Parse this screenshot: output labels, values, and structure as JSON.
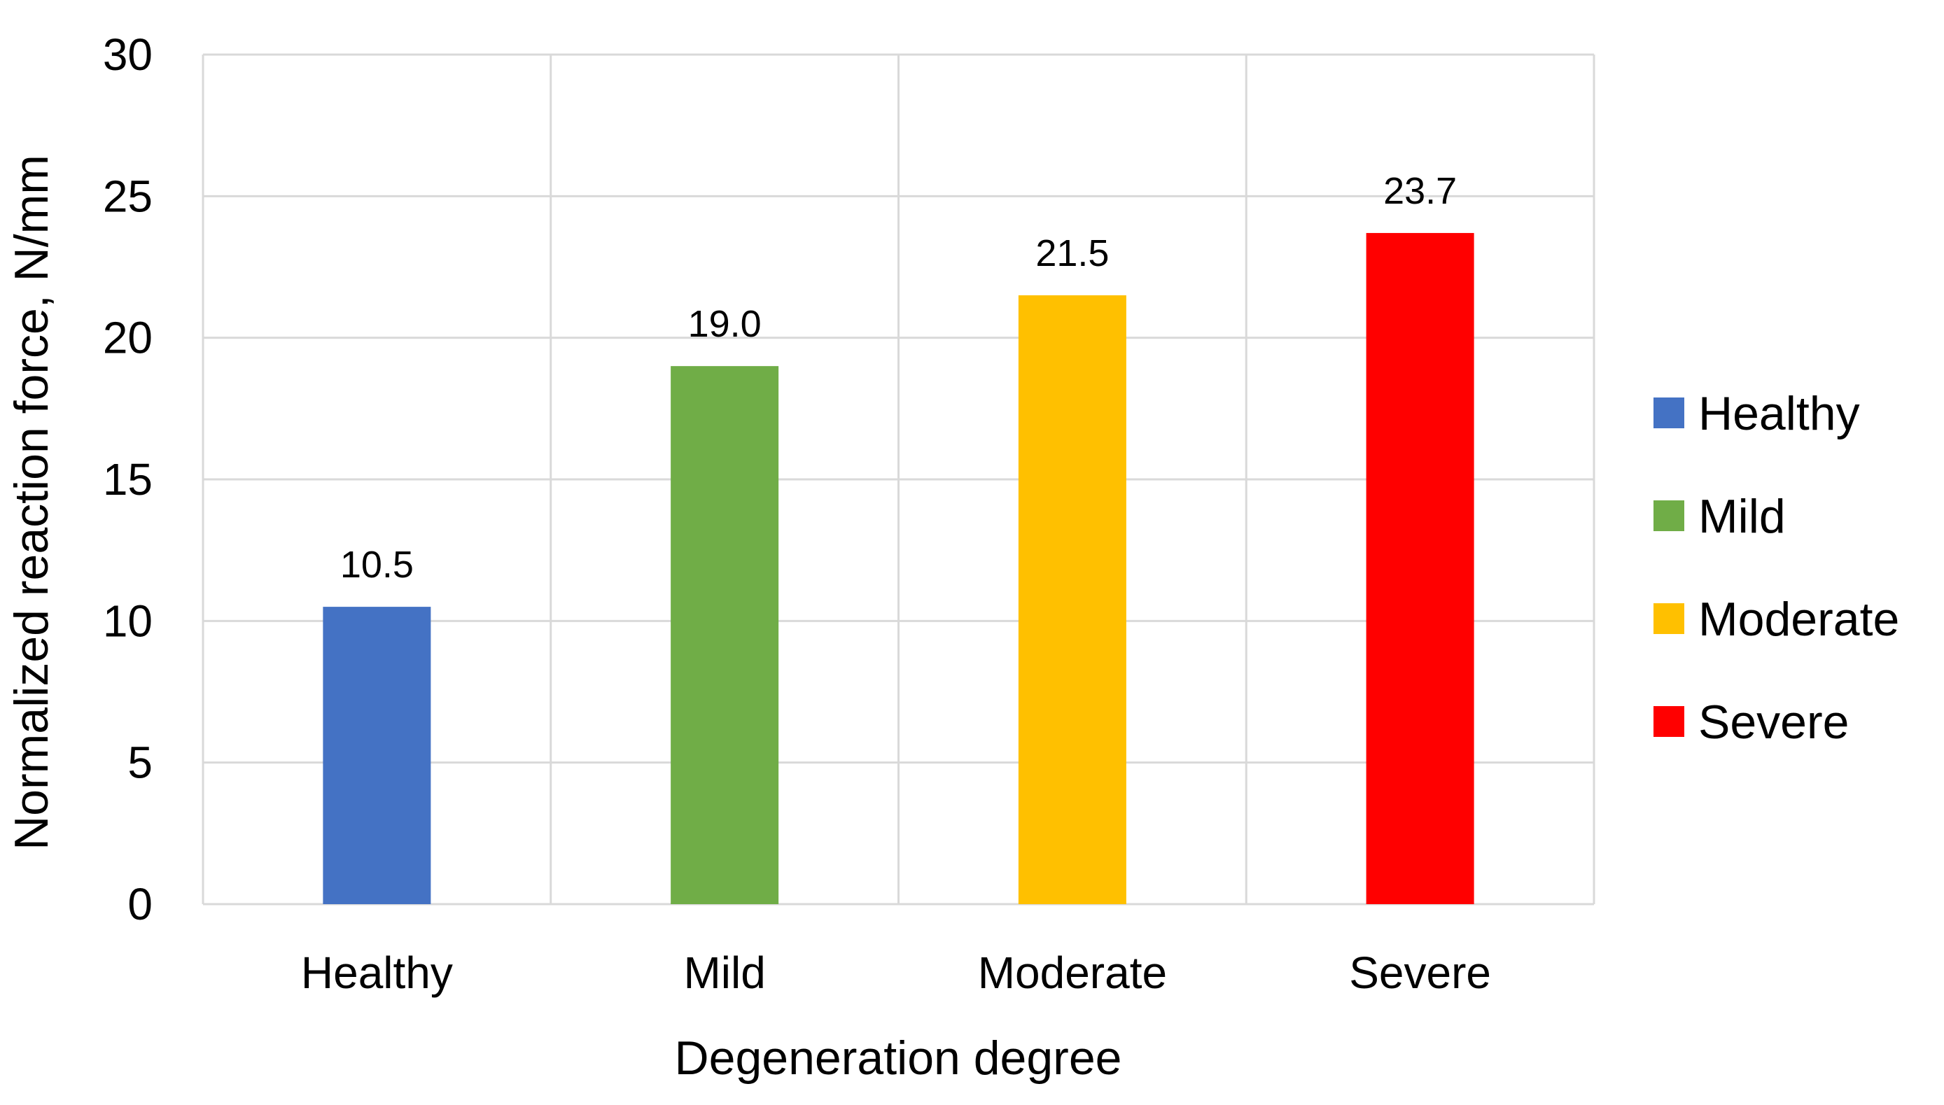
{
  "chart_data": {
    "type": "bar",
    "title": "",
    "xlabel": "Degeneration degree",
    "ylabel": "Normalized reaction force, N/mm",
    "categories": [
      "Healthy",
      "Mild",
      "Moderate",
      "Severe"
    ],
    "values": [
      10.5,
      19.0,
      21.5,
      23.7
    ],
    "value_labels": [
      "10.5",
      "19.0",
      "21.5",
      "23.7"
    ],
    "colors": [
      "#4472C4",
      "#70AD47",
      "#FFC000",
      "#FF0000"
    ],
    "ylim": [
      0,
      30
    ],
    "yticks": [
      0,
      5,
      10,
      15,
      20,
      25,
      30
    ],
    "ytick_labels": [
      "0",
      "5",
      "10",
      "15",
      "20",
      "25",
      "30"
    ],
    "grid": true,
    "legend": {
      "position": "right",
      "entries": [
        "Healthy",
        "Mild",
        "Moderate",
        "Severe"
      ]
    }
  }
}
